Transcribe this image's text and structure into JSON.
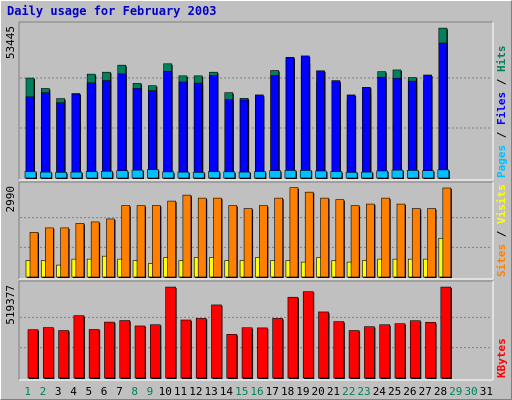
{
  "chart_data": {
    "type": "bar",
    "title": "Daily usage for February 2003",
    "x": [
      "1",
      "2",
      "3",
      "4",
      "5",
      "6",
      "7",
      "8",
      "9",
      "10",
      "11",
      "12",
      "13",
      "14",
      "15",
      "16",
      "17",
      "18",
      "19",
      "20",
      "21",
      "22",
      "23",
      "24",
      "25",
      "26",
      "27",
      "28",
      "29",
      "30",
      "31"
    ],
    "weekend_days": [
      "1",
      "2",
      "8",
      "9",
      "15",
      "16",
      "22",
      "23",
      "29",
      "30"
    ],
    "panels": [
      {
        "name": "hits-files-pages",
        "ymax_label": "53445",
        "ymax": 53445,
        "legend": [
          {
            "text": "Pages",
            "color": "#00c0ff"
          },
          {
            "text": " / ",
            "color": "#000000"
          },
          {
            "text": "Files",
            "color": "#0000ff"
          },
          {
            "text": " / ",
            "color": "#000000"
          },
          {
            "text": "Hits",
            "color": "#00805c"
          }
        ],
        "series": [
          {
            "name": "Hits",
            "color": "#00805c",
            "values": [
              35600,
              31900,
              28300,
              30100,
              37000,
              37700,
              40200,
              33700,
              32900,
              40700,
              36400,
              36400,
              37700,
              30400,
              28400,
              28700,
              38300,
              42000,
              41000,
              34200,
              33800,
              27900,
              30100,
              37900,
              38500,
              35800,
              34600,
              53400,
              0,
              0,
              0
            ]
          },
          {
            "name": "Files",
            "color": "#0000ff",
            "values": [
              28900,
              30400,
              26800,
              29900,
              33900,
              34700,
              37100,
              31900,
              31100,
              38000,
              34200,
              33800,
              36500,
              27900,
              27800,
              29600,
              36500,
              43000,
              43500,
              38200,
              34700,
              29600,
              32300,
              35900,
              35500,
              34500,
              36700,
              48100,
              0,
              0,
              0
            ]
          },
          {
            "name": "Pages",
            "color": "#00c0ff",
            "values": [
              2300,
              2100,
              2000,
              2100,
              2300,
              2400,
              2600,
              2800,
              3000,
              2200,
              2100,
              2000,
              2300,
              2200,
              2100,
              2300,
              2600,
              2700,
              2700,
              2500,
              2300,
              2000,
              2100,
              2500,
              2800,
              2700,
              2600,
              2900,
              0,
              0,
              0
            ]
          }
        ]
      },
      {
        "name": "sites-visits",
        "ymax_label": "2990",
        "ymax": 2990,
        "legend": [
          {
            "text": "Sites",
            "color": "#ff8000"
          },
          {
            "text": " / ",
            "color": "#000000"
          },
          {
            "text": "Visits",
            "color": "#ffff00"
          }
        ],
        "series": [
          {
            "name": "Visits",
            "color": "#ffff00",
            "values": [
              550,
              550,
              400,
              600,
              600,
              700,
              600,
              550,
              450,
              650,
              550,
              650,
              650,
              550,
              550,
              650,
              550,
              550,
              500,
              650,
              550,
              500,
              550,
              600,
              600,
              600,
              600,
              1300,
              0,
              0,
              0
            ]
          },
          {
            "name": "Sites",
            "color": "#ff8000",
            "values": [
              1500,
              1650,
              1650,
              1800,
              1850,
              1950,
              2400,
              2400,
              2400,
              2550,
              2750,
              2650,
              2650,
              2400,
              2300,
              2400,
              2650,
              3000,
              2850,
              2650,
              2600,
              2400,
              2450,
              2650,
              2450,
              2300,
              2300,
              2990,
              0,
              0,
              0
            ]
          }
        ]
      },
      {
        "name": "kbytes",
        "ymax_label": "519377",
        "ymax": 519377,
        "legend": [
          {
            "text": "KBytes",
            "color": "#ff0000"
          }
        ],
        "series": [
          {
            "name": "KBytes",
            "color": "#ff0000",
            "values": [
              276000,
              288000,
              271000,
              356000,
              277000,
              319000,
              328000,
              297000,
              304000,
              519000,
              331000,
              340000,
              417000,
              249000,
              287000,
              286000,
              340000,
              461000,
              493000,
              377000,
              322000,
              271000,
              293000,
              304000,
              310000,
              327000,
              318000,
              519000,
              0,
              0,
              0
            ]
          }
        ]
      }
    ]
  }
}
